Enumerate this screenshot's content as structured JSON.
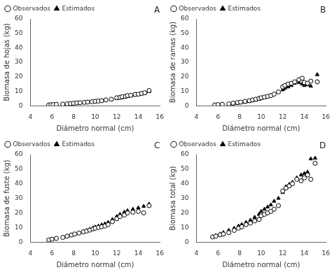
{
  "chart_data": [
    {
      "type": "scatter",
      "annotation": "A",
      "xlabel": "Diámetro normal (cm)",
      "ylabel": "Biomasa de hojas (kg)",
      "xlim": [
        4,
        16
      ],
      "ylim": [
        0,
        60
      ],
      "xticks": [
        4,
        6,
        8,
        10,
        12,
        14,
        16
      ],
      "yticks": [
        0,
        10,
        20,
        30,
        40,
        50,
        60
      ],
      "grid": false,
      "legend": "upper left",
      "series": [
        {
          "name": "Observados",
          "color": "white",
          "marker": "circle",
          "x": [
            5.7,
            5.9,
            6.1,
            6.4,
            7.0,
            7.4,
            7.7,
            8.0,
            8.3,
            8.6,
            9.0,
            9.3,
            9.7,
            10.0,
            10.3,
            10.6,
            11.0,
            11.5,
            12.0,
            12.3,
            12.5,
            12.8,
            13.0,
            13.3,
            13.7,
            14.0,
            14.3,
            14.6,
            15.0
          ],
          "values": [
            0.5,
            0.7,
            0.8,
            1.0,
            1.1,
            1.3,
            1.5,
            1.7,
            2.0,
            2.1,
            2.3,
            2.5,
            2.8,
            3.0,
            3.2,
            3.5,
            4.0,
            4.5,
            5.5,
            5.8,
            6.2,
            6.5,
            7.0,
            7.2,
            7.8,
            8.0,
            8.5,
            9.0,
            10.5
          ]
        },
        {
          "name": "Estimados",
          "color": "black",
          "marker": "triangle",
          "x": [
            5.7,
            5.9,
            6.1,
            6.4,
            7.0,
            7.4,
            7.7,
            8.0,
            8.3,
            8.6,
            9.0,
            9.3,
            9.7,
            10.0,
            10.3,
            10.6,
            11.0,
            11.5,
            12.0,
            12.3,
            12.5,
            12.8,
            13.0,
            13.3,
            13.7,
            14.0,
            14.3,
            14.6,
            15.0
          ],
          "values": [
            0.4,
            0.5,
            0.6,
            0.8,
            1.0,
            1.2,
            1.4,
            1.5,
            1.7,
            1.9,
            2.2,
            2.4,
            2.7,
            2.9,
            3.1,
            3.4,
            3.8,
            4.3,
            5.0,
            5.3,
            5.6,
            6.0,
            6.4,
            6.8,
            7.3,
            7.7,
            8.1,
            8.6,
            9.8
          ]
        }
      ]
    },
    {
      "type": "scatter",
      "annotation": "B",
      "xlabel": "Diámetro normal (cm)",
      "ylabel": "Biomasa de ramas (kg)",
      "xlim": [
        4,
        16
      ],
      "ylim": [
        0,
        60
      ],
      "xticks": [
        4,
        6,
        8,
        10,
        12,
        14,
        16
      ],
      "yticks": [
        0,
        10,
        20,
        30,
        40,
        50,
        60
      ],
      "grid": false,
      "legend": "upper left",
      "series": [
        {
          "name": "Observados",
          "color": "white",
          "marker": "circle",
          "x": [
            5.7,
            6.0,
            6.4,
            7.0,
            7.4,
            7.8,
            8.1,
            8.5,
            8.9,
            9.2,
            9.5,
            9.8,
            10.0,
            10.3,
            10.6,
            10.9,
            11.2,
            11.6,
            12.0,
            12.2,
            12.5,
            12.8,
            13.1,
            13.5,
            13.8,
            14.0,
            14.3,
            14.6,
            15.2
          ],
          "values": [
            0.5,
            0.8,
            1.0,
            1.3,
            1.8,
            2.2,
            2.5,
            3.0,
            3.5,
            4.0,
            4.5,
            5.0,
            5.5,
            6.0,
            6.5,
            7.0,
            8.0,
            9.5,
            13.0,
            14.0,
            15.0,
            15.5,
            16.5,
            18.0,
            19.0,
            16.0,
            15.5,
            17.0,
            16.5
          ]
        },
        {
          "name": "Estimados",
          "color": "black",
          "marker": "triangle",
          "x": [
            5.7,
            6.0,
            6.4,
            7.0,
            7.4,
            7.8,
            8.1,
            8.5,
            8.9,
            9.2,
            9.5,
            9.8,
            10.0,
            10.3,
            10.6,
            10.9,
            11.2,
            11.6,
            12.0,
            12.2,
            12.5,
            12.8,
            13.1,
            13.5,
            13.8,
            14.0,
            14.3,
            14.6,
            15.2
          ],
          "values": [
            0.3,
            0.5,
            0.7,
            1.0,
            1.3,
            1.6,
            2.0,
            2.4,
            2.9,
            3.4,
            3.9,
            4.5,
            5.0,
            5.6,
            6.3,
            7.0,
            8.0,
            9.5,
            11.0,
            12.0,
            13.0,
            14.0,
            15.5,
            16.0,
            15.0,
            14.0,
            14.5,
            13.5,
            21.5
          ]
        }
      ]
    },
    {
      "type": "scatter",
      "annotation": "C",
      "xlabel": "Diámetro normal (cm)",
      "ylabel": "Biomasa de fuste (kg)",
      "xlim": [
        4,
        16
      ],
      "ylim": [
        0,
        60
      ],
      "xticks": [
        4,
        6,
        8,
        10,
        12,
        14,
        16
      ],
      "yticks": [
        0,
        10,
        20,
        30,
        40,
        50,
        60
      ],
      "grid": false,
      "legend": "upper left",
      "series": [
        {
          "name": "Observados",
          "color": "white",
          "marker": "circle",
          "x": [
            5.7,
            6.0,
            6.4,
            7.0,
            7.4,
            7.8,
            8.1,
            8.5,
            8.9,
            9.2,
            9.5,
            9.8,
            10.0,
            10.3,
            10.6,
            10.9,
            11.2,
            11.6,
            12.0,
            12.3,
            12.7,
            13.0,
            13.5,
            14.0,
            14.5,
            15.0
          ],
          "values": [
            1.5,
            2.0,
            2.5,
            3.2,
            4.0,
            4.8,
            5.5,
            6.2,
            7.0,
            7.5,
            8.2,
            9.0,
            9.5,
            10.0,
            10.5,
            11.0,
            12.0,
            14.0,
            16.0,
            17.5,
            18.5,
            20.0,
            20.5,
            21.0,
            20.0,
            25.0
          ]
        },
        {
          "name": "Estimados",
          "color": "black",
          "marker": "triangle",
          "x": [
            5.7,
            6.0,
            6.4,
            7.0,
            7.4,
            7.8,
            8.1,
            8.5,
            8.9,
            9.2,
            9.5,
            9.8,
            10.0,
            10.3,
            10.6,
            10.9,
            11.2,
            11.6,
            12.0,
            12.3,
            12.7,
            13.0,
            13.5,
            14.0,
            14.5,
            15.0
          ],
          "values": [
            1.5,
            1.9,
            2.5,
            3.3,
            4.0,
            4.8,
            5.5,
            6.3,
            7.2,
            8.0,
            8.8,
            9.7,
            10.3,
            11.0,
            11.8,
            12.5,
            13.5,
            15.5,
            17.5,
            19.0,
            20.5,
            21.5,
            22.5,
            23.5,
            24.5,
            26.0
          ]
        }
      ]
    },
    {
      "type": "scatter",
      "annotation": "D",
      "xlabel": "Diámetro normal (cm)",
      "ylabel": "Biomasa total (kg)",
      "xlim": [
        4,
        16
      ],
      "ylim": [
        0,
        60
      ],
      "xticks": [
        4,
        6,
        8,
        10,
        12,
        14,
        16
      ],
      "yticks": [
        0,
        10,
        20,
        30,
        40,
        50,
        60
      ],
      "grid": false,
      "legend": "upper left",
      "series": [
        {
          "name": "Observados",
          "color": "white",
          "marker": "circle",
          "x": [
            5.5,
            5.8,
            6.2,
            6.5,
            7.0,
            7.5,
            7.9,
            8.2,
            8.6,
            9.0,
            9.4,
            9.8,
            10.0,
            10.3,
            10.6,
            10.9,
            11.2,
            11.6,
            12.0,
            12.3,
            12.6,
            12.9,
            13.3,
            13.7,
            14.0,
            14.3,
            14.6,
            15.0
          ],
          "values": [
            3.5,
            4.0,
            5.0,
            5.5,
            6.5,
            8.0,
            9.5,
            10.5,
            12.0,
            13.0,
            14.5,
            15.5,
            18.0,
            19.0,
            20.0,
            21.0,
            22.5,
            25.0,
            35.0,
            37.0,
            38.5,
            40.0,
            43.0,
            42.0,
            44.0,
            46.0,
            43.0,
            54.0
          ]
        },
        {
          "name": "Estimados",
          "color": "black",
          "marker": "triangle",
          "x": [
            5.5,
            5.8,
            6.2,
            6.5,
            7.0,
            7.5,
            7.9,
            8.2,
            8.6,
            9.0,
            9.4,
            9.8,
            10.0,
            10.3,
            10.6,
            10.9,
            11.2,
            11.6,
            12.0,
            12.3,
            12.6,
            12.9,
            13.3,
            13.7,
            14.0,
            14.3,
            14.6,
            15.0
          ],
          "values": [
            3.5,
            4.5,
            5.5,
            6.5,
            8.0,
            9.5,
            11.0,
            12.0,
            13.5,
            15.0,
            17.0,
            19.0,
            21.0,
            22.5,
            24.0,
            25.5,
            28.0,
            30.0,
            34.0,
            38.0,
            39.5,
            41.0,
            44.0,
            46.0,
            47.0,
            48.0,
            57.0,
            57.5
          ]
        }
      ]
    }
  ]
}
